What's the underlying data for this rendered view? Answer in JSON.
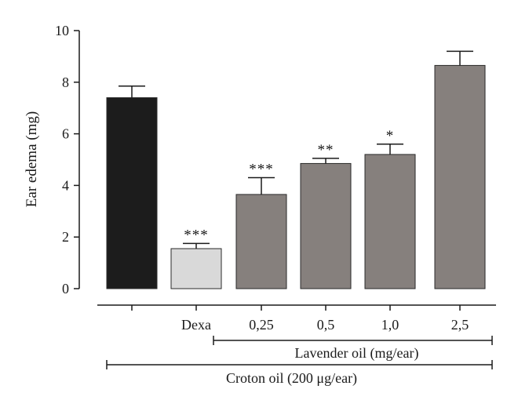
{
  "chart_data": {
    "type": "bar",
    "title": "",
    "ylabel": "Ear edema (mg)",
    "xlabel": "",
    "ylim": [
      0,
      10
    ],
    "yticks": [
      "0",
      "2",
      "4",
      "6",
      "8",
      "10"
    ],
    "categories": [
      "",
      "Dexa",
      "0,25",
      "0,5",
      "1,0",
      "2,5"
    ],
    "values": [
      7.4,
      1.55,
      3.65,
      4.85,
      5.2,
      8.65
    ],
    "errors": [
      0.45,
      0.2,
      0.65,
      0.2,
      0.4,
      0.55
    ],
    "significance": [
      "",
      "***",
      "***",
      "**",
      "*",
      ""
    ],
    "colors": {
      "control": "#1c1c1c",
      "dexa": "#d9d9d9",
      "lavender": "#86807d",
      "axis": "#1a1a1a"
    },
    "bar_colors": [
      "#1c1c1c",
      "#d9d9d9",
      "#86807d",
      "#86807d",
      "#86807d",
      "#86807d"
    ],
    "groups": [
      {
        "label": "Lavender oil (mg/ear)",
        "from": 2,
        "to": 5
      },
      {
        "label": "Croton oil (200 μg/ear)",
        "from": 0,
        "to": 5
      }
    ]
  }
}
